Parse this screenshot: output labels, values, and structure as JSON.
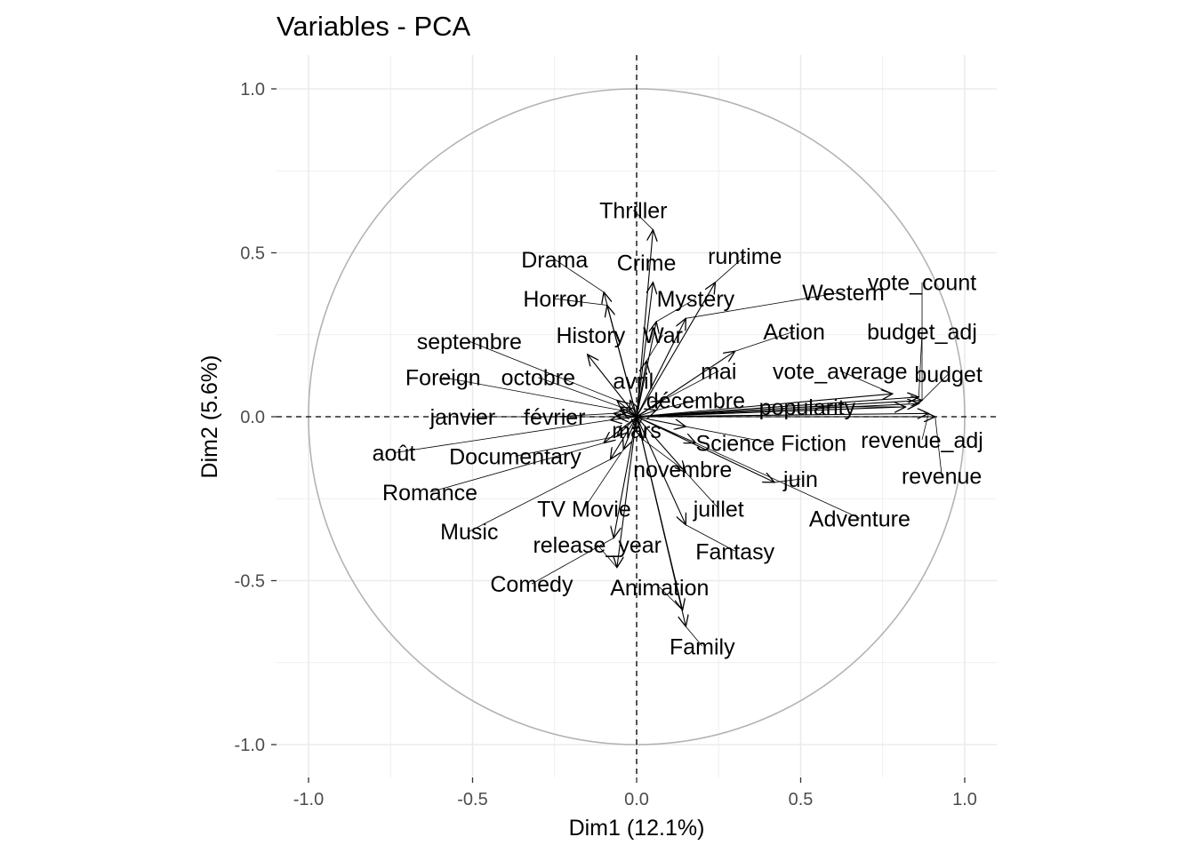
{
  "chart_data": {
    "type": "scatter",
    "subtype": "pca-variable-correlation-circle",
    "title": "Variables - PCA",
    "xlabel": "Dim1 (12.1%)",
    "ylabel": "Dim2 (5.6%)",
    "xlim": [
      -1.1,
      1.1
    ],
    "ylim": [
      -1.1,
      1.1
    ],
    "x_ticks": [
      -1.0,
      -0.5,
      0.0,
      0.5,
      1.0
    ],
    "y_ticks": [
      -1.0,
      -0.5,
      0.0,
      0.5,
      1.0
    ],
    "x_tick_labels": [
      "-1.0",
      "-0.5",
      "0.0",
      "0.5",
      "1.0"
    ],
    "y_tick_labels": [
      "-1.0",
      "-0.5",
      "0.0",
      "0.5",
      "1.0"
    ],
    "grid": true,
    "unit_circle": true,
    "arrow_color": "#000000",
    "circle_color": "#b3b3b3",
    "grid_color": "#ebebeb",
    "variables": [
      {
        "name": "Thriller",
        "x": 0.05,
        "y": 0.57,
        "lx": -0.01,
        "ly": 0.63
      },
      {
        "name": "Drama",
        "x": -0.1,
        "y": 0.38,
        "lx": -0.25,
        "ly": 0.48
      },
      {
        "name": "Crime",
        "x": 0.05,
        "y": 0.41,
        "lx": 0.03,
        "ly": 0.47
      },
      {
        "name": "runtime",
        "x": 0.24,
        "y": 0.41,
        "lx": 0.33,
        "ly": 0.49
      },
      {
        "name": "Horror",
        "x": -0.09,
        "y": 0.34,
        "lx": -0.25,
        "ly": 0.36
      },
      {
        "name": "Mystery",
        "x": 0.06,
        "y": 0.29,
        "lx": 0.18,
        "ly": 0.36
      },
      {
        "name": "Western",
        "x": 0.15,
        "y": 0.3,
        "lx": 0.63,
        "ly": 0.38
      },
      {
        "name": "vote_count",
        "x": 0.87,
        "y": 0.05,
        "lx": 0.87,
        "ly": 0.41
      },
      {
        "name": "History",
        "x": -0.15,
        "y": 0.19,
        "lx": -0.14,
        "ly": 0.25
      },
      {
        "name": "War",
        "x": 0.03,
        "y": 0.17,
        "lx": 0.08,
        "ly": 0.25
      },
      {
        "name": "Action",
        "x": 0.3,
        "y": 0.2,
        "lx": 0.48,
        "ly": 0.26
      },
      {
        "name": "budget_adj",
        "x": 0.86,
        "y": 0.06,
        "lx": 0.87,
        "ly": 0.26
      },
      {
        "name": "septembre",
        "x": -0.06,
        "y": 0.05,
        "lx": -0.51,
        "ly": 0.23
      },
      {
        "name": "mai",
        "x": 0.08,
        "y": 0.05,
        "lx": 0.25,
        "ly": 0.14
      },
      {
        "name": "vote_average",
        "x": 0.78,
        "y": 0.07,
        "lx": 0.62,
        "ly": 0.14
      },
      {
        "name": "budget",
        "x": 0.86,
        "y": 0.04,
        "lx": 0.95,
        "ly": 0.13
      },
      {
        "name": "Foreign",
        "x": -0.05,
        "y": 0.02,
        "lx": -0.59,
        "ly": 0.12
      },
      {
        "name": "octobre",
        "x": -0.05,
        "y": 0.03,
        "lx": -0.3,
        "ly": 0.12
      },
      {
        "name": "avril",
        "x": -0.02,
        "y": 0.05,
        "lx": -0.01,
        "ly": 0.11
      },
      {
        "name": "décembre",
        "x": 0.06,
        "y": 0.02,
        "lx": 0.18,
        "ly": 0.05
      },
      {
        "name": "popularity",
        "x": 0.82,
        "y": 0.03,
        "lx": 0.52,
        "ly": 0.03
      },
      {
        "name": "janvier",
        "x": -0.06,
        "y": 0.0,
        "lx": -0.53,
        "ly": 0.0
      },
      {
        "name": "février",
        "x": -0.07,
        "y": 0.01,
        "lx": -0.25,
        "ly": 0.0
      },
      {
        "name": "mars",
        "x": 0.0,
        "y": -0.04,
        "lx": 0.0,
        "ly": -0.04
      },
      {
        "name": "revenue_adj",
        "x": 0.89,
        "y": 0.01,
        "lx": 0.87,
        "ly": -0.07
      },
      {
        "name": "Science Fiction",
        "x": 0.15,
        "y": -0.03,
        "lx": 0.41,
        "ly": -0.08
      },
      {
        "name": "août",
        "x": -0.08,
        "y": -0.01,
        "lx": -0.74,
        "ly": -0.11
      },
      {
        "name": "Documentary",
        "x": -0.06,
        "y": -0.06,
        "lx": -0.37,
        "ly": -0.12
      },
      {
        "name": "novembre",
        "x": 0.02,
        "y": -0.07,
        "lx": 0.14,
        "ly": -0.16
      },
      {
        "name": "revenue",
        "x": 0.91,
        "y": 0.0,
        "lx": 0.93,
        "ly": -0.18
      },
      {
        "name": "juin",
        "x": 0.42,
        "y": -0.2,
        "lx": 0.5,
        "ly": -0.19
      },
      {
        "name": "Romance",
        "x": -0.1,
        "y": -0.08,
        "lx": -0.63,
        "ly": -0.23
      },
      {
        "name": "TV Movie",
        "x": -0.04,
        "y": -0.1,
        "lx": -0.16,
        "ly": -0.28
      },
      {
        "name": "juillet",
        "x": 0.15,
        "y": -0.17,
        "lx": 0.25,
        "ly": -0.28
      },
      {
        "name": "Adventure",
        "x": 0.18,
        "y": -0.08,
        "lx": 0.68,
        "ly": -0.31
      },
      {
        "name": "Music",
        "x": -0.08,
        "y": -0.13,
        "lx": -0.51,
        "ly": -0.35
      },
      {
        "name": "release_year",
        "x": -0.06,
        "y": -0.46,
        "lx": -0.12,
        "ly": -0.39
      },
      {
        "name": "Fantasy",
        "x": 0.15,
        "y": -0.33,
        "lx": 0.3,
        "ly": -0.41
      },
      {
        "name": "Comedy",
        "x": -0.07,
        "y": -0.37,
        "lx": -0.32,
        "ly": -0.51
      },
      {
        "name": "Animation",
        "x": 0.14,
        "y": -0.59,
        "lx": 0.07,
        "ly": -0.52
      },
      {
        "name": "Family",
        "x": 0.15,
        "y": -0.64,
        "lx": 0.2,
        "ly": -0.7
      }
    ]
  }
}
